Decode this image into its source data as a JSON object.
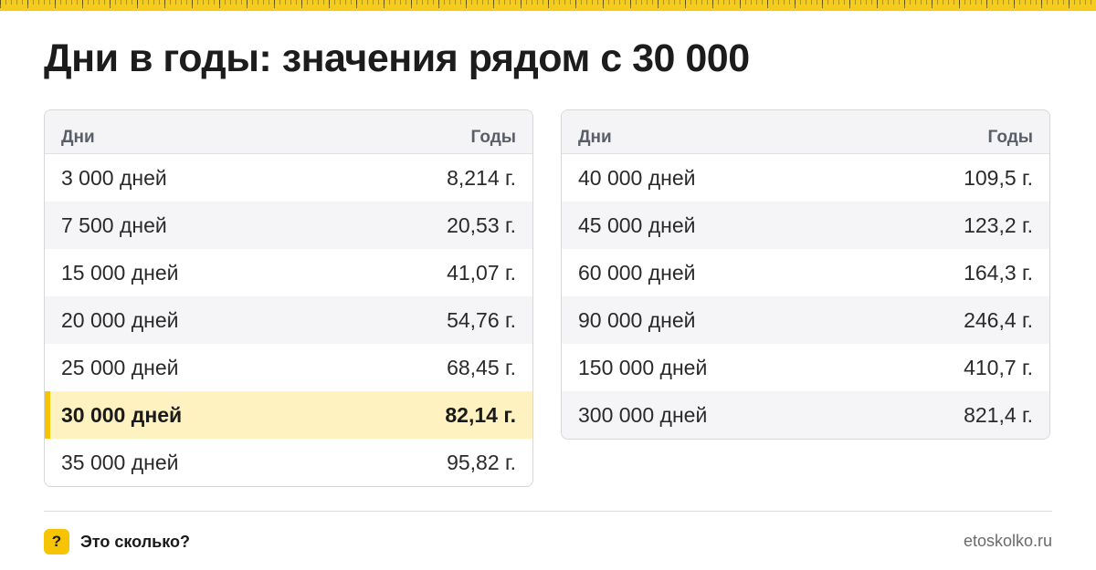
{
  "title": "Дни в годы: значения рядом с 30 000",
  "headers": {
    "days": "Дни",
    "years": "Годы"
  },
  "left_table": [
    {
      "days": "3 000 дней",
      "years": "8,214 г."
    },
    {
      "days": "7 500 дней",
      "years": "20,53 г."
    },
    {
      "days": "15 000 дней",
      "years": "41,07 г."
    },
    {
      "days": "20 000 дней",
      "years": "54,76 г."
    },
    {
      "days": "25 000 дней",
      "years": "68,45 г."
    },
    {
      "days": "30 000 дней",
      "years": "82,14 г.",
      "highlight": true
    },
    {
      "days": "35 000 дней",
      "years": "95,82 г."
    }
  ],
  "right_table": [
    {
      "days": "40 000 дней",
      "years": "109,5 г."
    },
    {
      "days": "45 000 дней",
      "years": "123,2 г."
    },
    {
      "days": "60 000 дней",
      "years": "164,3 г."
    },
    {
      "days": "90 000 дней",
      "years": "246,4 г."
    },
    {
      "days": "150 000 дней",
      "years": "410,7 г."
    },
    {
      "days": "300 000 дней",
      "years": "821,4 г."
    }
  ],
  "footer": {
    "badge": "?",
    "brand": "Это сколько?",
    "site": "etoskolko.ru"
  },
  "colors": {
    "accent": "#f6c400",
    "highlight_row": "#fdf2c0",
    "header_bg": "#f4f4f6"
  }
}
